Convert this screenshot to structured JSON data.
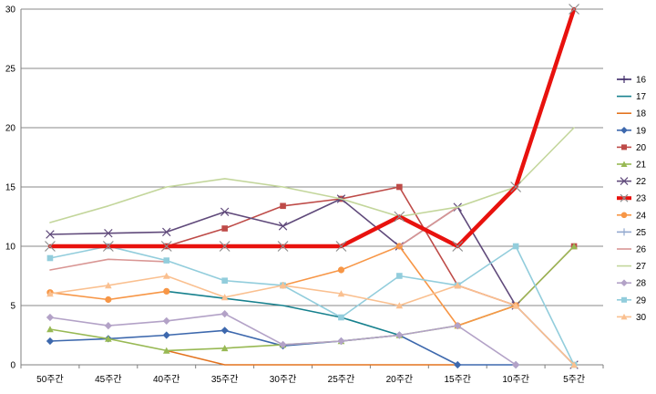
{
  "chart_data": {
    "type": "line",
    "title": "",
    "xlabel": "",
    "ylabel": "",
    "ylim": [
      0,
      30
    ],
    "y_ticks": [
      "0",
      "5",
      "10",
      "15",
      "20",
      "25",
      "30"
    ],
    "grid": "horizontal",
    "legend_position": "right",
    "categories": [
      "50주간",
      "45주간",
      "40주간",
      "35주간",
      "30주간",
      "25주간",
      "20주간",
      "15주간",
      "10주간",
      "5주간"
    ],
    "series": [
      {
        "name": "16",
        "color": "#3f2b69",
        "marker": "plus",
        "values": [
          null,
          null,
          null,
          null,
          null,
          null,
          null,
          null,
          null,
          null
        ]
      },
      {
        "name": "17",
        "color": "#17818e",
        "marker": "none",
        "values": [
          null,
          null,
          6.2,
          5.6,
          5.0,
          4.0,
          2.5,
          null,
          null,
          null
        ]
      },
      {
        "name": "18",
        "color": "#e3731f",
        "marker": "none",
        "values": [
          null,
          null,
          1.2,
          0,
          0,
          0,
          0,
          0,
          null,
          null
        ]
      },
      {
        "name": "19",
        "color": "#3d68ad",
        "marker": "diamond",
        "values": [
          2.0,
          2.2,
          2.5,
          2.9,
          1.6,
          2.0,
          2.5,
          0,
          0,
          null
        ]
      },
      {
        "name": "20",
        "color": "#be4b48",
        "marker": "square",
        "values": [
          null,
          null,
          10.0,
          11.5,
          13.4,
          14.0,
          15.0,
          6.7,
          5.0,
          10.0
        ]
      },
      {
        "name": "21",
        "color": "#98b954",
        "marker": "triangle",
        "values": [
          3.0,
          2.2,
          1.2,
          1.4,
          1.7,
          2.0,
          2.5,
          3.3,
          5.0,
          10.0
        ]
      },
      {
        "name": "22",
        "color": "#604a7b",
        "marker": "x",
        "values": [
          11.0,
          11.1,
          11.2,
          12.9,
          11.7,
          14.0,
          10.0,
          13.3,
          5.0,
          0
        ]
      },
      {
        "name": "23",
        "color": "#e8120e",
        "marker": "x",
        "values": [
          10.0,
          10.0,
          10.0,
          10.0,
          10.0,
          10.0,
          12.5,
          10.0,
          15.0,
          30.0
        ]
      },
      {
        "name": "24",
        "color": "#f79646",
        "marker": "circle",
        "values": [
          6.1,
          5.5,
          6.2,
          null,
          6.7,
          8.0,
          10.0,
          3.3,
          5.0,
          null
        ]
      },
      {
        "name": "25",
        "color": "#93a9cf",
        "marker": "plus",
        "values": [
          null,
          null,
          null,
          null,
          null,
          null,
          null,
          null,
          null,
          null
        ]
      },
      {
        "name": "26",
        "color": "#d99694",
        "marker": "none",
        "values": [
          8.0,
          8.9,
          8.7,
          null,
          null,
          null,
          10.0,
          13.3,
          null,
          null
        ]
      },
      {
        "name": "27",
        "color": "#c3d69b",
        "marker": "none",
        "values": [
          12.0,
          13.4,
          15.0,
          15.7,
          15.0,
          14.0,
          12.5,
          13.3,
          15.0,
          20.0
        ]
      },
      {
        "name": "28",
        "color": "#b3a2c7",
        "marker": "diamond",
        "values": [
          4.0,
          3.3,
          3.7,
          4.3,
          1.7,
          2.0,
          2.5,
          3.3,
          0,
          null
        ]
      },
      {
        "name": "29",
        "color": "#92cddc",
        "marker": "square",
        "values": [
          9.0,
          10.0,
          8.8,
          7.1,
          6.7,
          4.0,
          7.5,
          6.7,
          10.0,
          0
        ]
      },
      {
        "name": "30",
        "color": "#fac090",
        "marker": "triangle",
        "values": [
          6.0,
          6.7,
          7.5,
          5.7,
          6.7,
          6.0,
          5.0,
          6.7,
          5.0,
          0
        ]
      }
    ]
  }
}
